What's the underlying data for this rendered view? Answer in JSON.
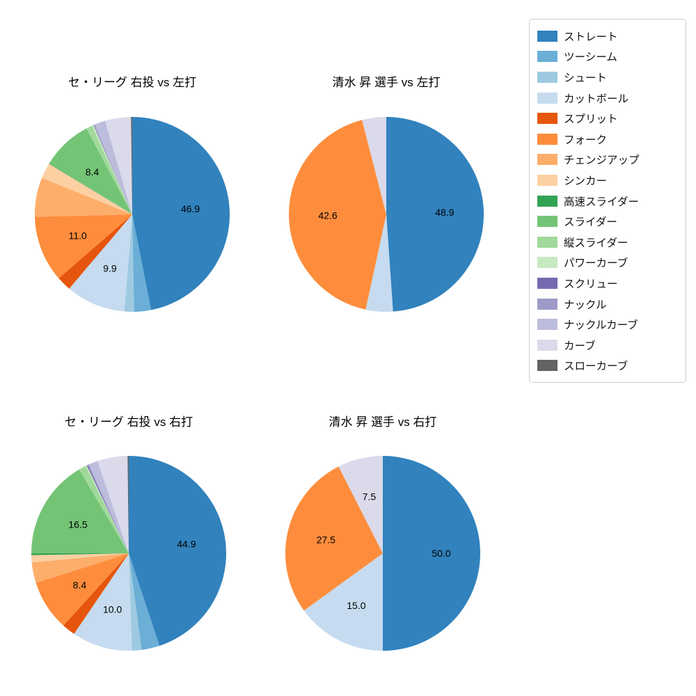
{
  "legend": {
    "items": [
      {
        "name": "ストレート",
        "color": "#3182bd"
      },
      {
        "name": "ツーシーム",
        "color": "#6baed6"
      },
      {
        "name": "シュート",
        "color": "#9ecae1"
      },
      {
        "name": "カットボール",
        "color": "#c6dbef"
      },
      {
        "name": "スプリット",
        "color": "#e6550d"
      },
      {
        "name": "フォーク",
        "color": "#fd8d3c"
      },
      {
        "name": "チェンジアップ",
        "color": "#fdae6b"
      },
      {
        "name": "シンカー",
        "color": "#fdd0a2"
      },
      {
        "name": "高速スライダー",
        "color": "#31a354"
      },
      {
        "name": "スライダー",
        "color": "#74c476"
      },
      {
        "name": "縦スライダー",
        "color": "#a1d99b"
      },
      {
        "name": "パワーカーブ",
        "color": "#c7e9c0"
      },
      {
        "name": "スクリュー",
        "color": "#756bb1"
      },
      {
        "name": "ナックル",
        "color": "#9e9ac8"
      },
      {
        "name": "ナックルカーブ",
        "color": "#bcbddc"
      },
      {
        "name": "カーブ",
        "color": "#dadaeb"
      },
      {
        "name": "スローカーブ",
        "color": "#636363"
      }
    ]
  },
  "chart_data": [
    {
      "type": "pie",
      "title": "セ・リーグ 右投 vs 左打",
      "start_angle_deg": 90,
      "direction": "clockwise",
      "slices": [
        {
          "name": "ストレート",
          "value": 46.9,
          "label": "46.9"
        },
        {
          "name": "ツーシーム",
          "value": 2.8,
          "label": ""
        },
        {
          "name": "シュート",
          "value": 1.6,
          "label": ""
        },
        {
          "name": "カットボール",
          "value": 9.9,
          "label": "9.9"
        },
        {
          "name": "スプリット",
          "value": 2.4,
          "label": ""
        },
        {
          "name": "フォーク",
          "value": 11.0,
          "label": "11.0"
        },
        {
          "name": "チェンジアップ",
          "value": 6.5,
          "label": ""
        },
        {
          "name": "シンカー",
          "value": 2.6,
          "label": ""
        },
        {
          "name": "高速スライダー",
          "value": 0.1,
          "label": ""
        },
        {
          "name": "スライダー",
          "value": 8.4,
          "label": "8.4"
        },
        {
          "name": "縦スライダー",
          "value": 1.0,
          "label": ""
        },
        {
          "name": "パワーカーブ",
          "value": 0.3,
          "label": ""
        },
        {
          "name": "スクリュー",
          "value": 0.1,
          "label": ""
        },
        {
          "name": "ナックル",
          "value": 0.1,
          "label": ""
        },
        {
          "name": "ナックルカーブ",
          "value": 1.8,
          "label": ""
        },
        {
          "name": "カーブ",
          "value": 4.3,
          "label": ""
        },
        {
          "name": "スローカーブ",
          "value": 0.2,
          "label": ""
        }
      ]
    },
    {
      "type": "pie",
      "title": "清水 昇 選手 vs 左打",
      "start_angle_deg": 90,
      "direction": "clockwise",
      "slices": [
        {
          "name": "ストレート",
          "value": 48.9,
          "label": "48.9"
        },
        {
          "name": "カットボール",
          "value": 4.5,
          "label": ""
        },
        {
          "name": "フォーク",
          "value": 42.6,
          "label": "42.6"
        },
        {
          "name": "カーブ",
          "value": 4.0,
          "label": ""
        }
      ]
    },
    {
      "type": "pie",
      "title": "セ・リーグ 右投 vs 右打",
      "start_angle_deg": 90,
      "direction": "clockwise",
      "slices": [
        {
          "name": "ストレート",
          "value": 44.9,
          "label": "44.9"
        },
        {
          "name": "ツーシーム",
          "value": 3.0,
          "label": ""
        },
        {
          "name": "シュート",
          "value": 1.6,
          "label": ""
        },
        {
          "name": "カットボール",
          "value": 10.0,
          "label": "10.0"
        },
        {
          "name": "スプリット",
          "value": 2.2,
          "label": ""
        },
        {
          "name": "フォーク",
          "value": 8.4,
          "label": "8.4"
        },
        {
          "name": "チェンジアップ",
          "value": 3.4,
          "label": ""
        },
        {
          "name": "シンカー",
          "value": 1.2,
          "label": ""
        },
        {
          "name": "高速スライダー",
          "value": 0.3,
          "label": ""
        },
        {
          "name": "スライダー",
          "value": 16.5,
          "label": "16.5"
        },
        {
          "name": "縦スライダー",
          "value": 1.2,
          "label": ""
        },
        {
          "name": "パワーカーブ",
          "value": 0.2,
          "label": ""
        },
        {
          "name": "スクリュー",
          "value": 0.2,
          "label": ""
        },
        {
          "name": "ナックル",
          "value": 0.2,
          "label": ""
        },
        {
          "name": "ナックルカーブ",
          "value": 1.5,
          "label": ""
        },
        {
          "name": "カーブ",
          "value": 5.0,
          "label": ""
        },
        {
          "name": "スローカーブ",
          "value": 0.2,
          "label": ""
        }
      ]
    },
    {
      "type": "pie",
      "title": "清水 昇 選手 vs 右打",
      "start_angle_deg": 90,
      "direction": "clockwise",
      "slices": [
        {
          "name": "ストレート",
          "value": 50.0,
          "label": "50.0"
        },
        {
          "name": "カットボール",
          "value": 15.0,
          "label": "15.0"
        },
        {
          "name": "フォーク",
          "value": 27.5,
          "label": "27.5"
        },
        {
          "name": "カーブ",
          "value": 7.5,
          "label": "7.5"
        }
      ]
    }
  ]
}
